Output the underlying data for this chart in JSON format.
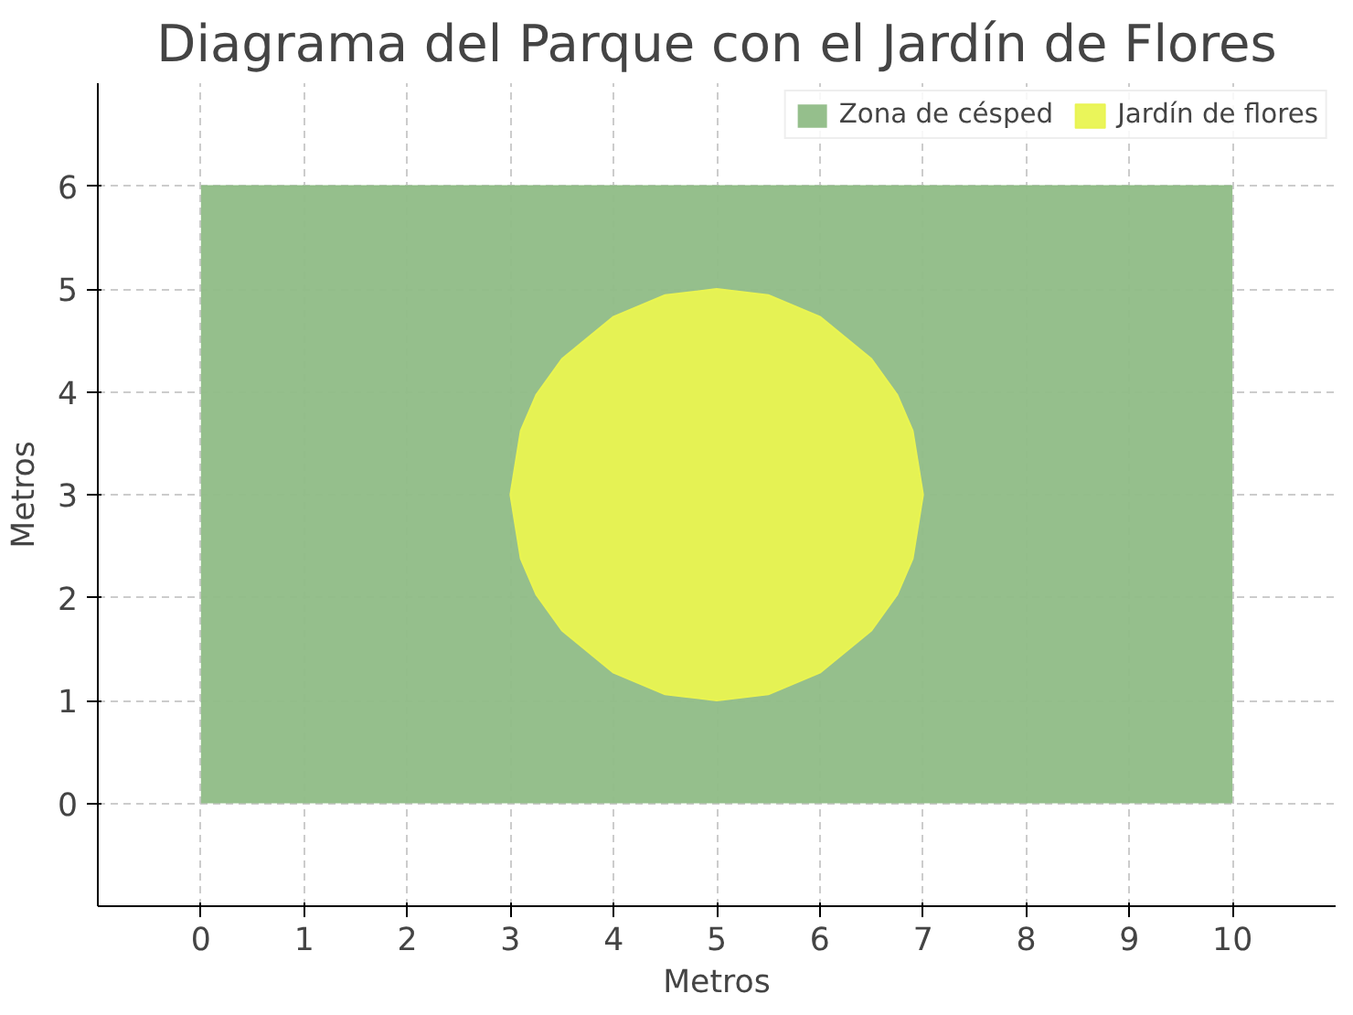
{
  "chart_data": {
    "type": "area",
    "title": "Diagrama del Parque con el Jardín de Flores",
    "xlabel": "Metros",
    "ylabel": "Metros",
    "series": [
      {
        "name": "Zona de césped",
        "color": "#8fbc86",
        "x": [
          0,
          10
        ],
        "values": [
          6,
          6
        ]
      },
      {
        "name": "Jardín de flores",
        "color": "#e9f451",
        "x": [
          3,
          3.1,
          3.25,
          3.5,
          4,
          4.5,
          5,
          5.5,
          6,
          6.5,
          6.75,
          6.9,
          7,
          6.9,
          6.75,
          6.5,
          6,
          5.5,
          5,
          4.5,
          4,
          3.5,
          3.25,
          3.1
        ],
        "values": [
          3,
          3.62,
          3.97,
          4.32,
          4.73,
          4.94,
          5,
          4.94,
          4.73,
          4.32,
          3.97,
          3.62,
          3,
          2.38,
          2.03,
          1.68,
          1.27,
          1.06,
          1,
          1.06,
          1.27,
          1.68,
          2.03,
          2.38
        ]
      }
    ],
    "xlim": [
      -1,
      11
    ],
    "ylim": [
      -1,
      7
    ],
    "xticks": [
      0,
      1,
      2,
      3,
      4,
      5,
      6,
      7,
      8,
      9,
      10
    ],
    "yticks": [
      0,
      1,
      2,
      3,
      4,
      5,
      6
    ],
    "grid": true,
    "legend": "top right"
  }
}
